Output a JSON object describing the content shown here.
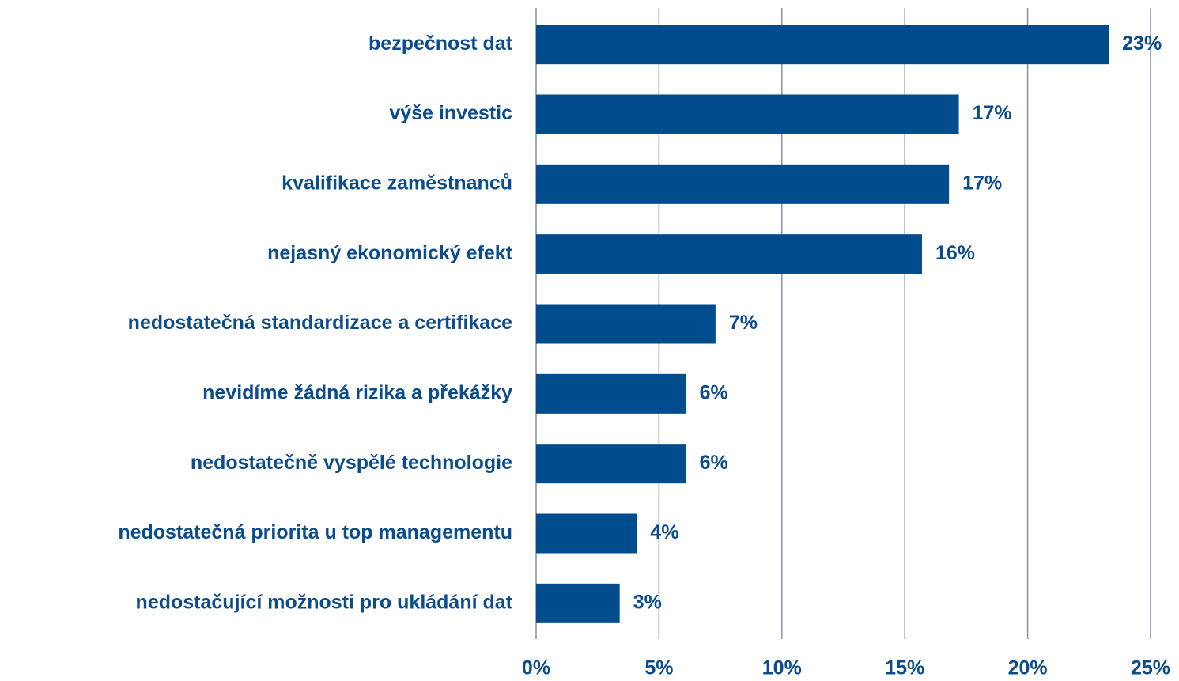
{
  "chart_data": {
    "type": "barh",
    "categories": [
      "bezpečnost dat",
      "výše investic",
      "kvalifikace zaměstnanců",
      "nejasný ekonomický efekt",
      "nedostatečná standardizace a certifikace",
      "nevidíme žádná rizika a překážky",
      "nedostatečně vyspělé technologie",
      "nedostatečná priorita u top managementu",
      "nedostačující možnosti pro ukládání dat"
    ],
    "values": [
      23.3,
      17.2,
      16.8,
      15.7,
      7.3,
      6.1,
      6.1,
      4.1,
      3.4
    ],
    "value_labels": [
      "23%",
      "17%",
      "17%",
      "16%",
      "7%",
      "6%",
      "6%",
      "4%",
      "3%"
    ],
    "color": "#004c8c",
    "xlim": [
      0,
      25
    ],
    "xticks": [
      {
        "value": 0,
        "label": "0%"
      },
      {
        "value": 5,
        "label": "5%"
      },
      {
        "value": 10,
        "label": "10%"
      },
      {
        "value": 15,
        "label": "15%"
      },
      {
        "value": 20,
        "label": "20%"
      },
      {
        "value": 25,
        "label": "25%"
      }
    ],
    "grid": true
  }
}
